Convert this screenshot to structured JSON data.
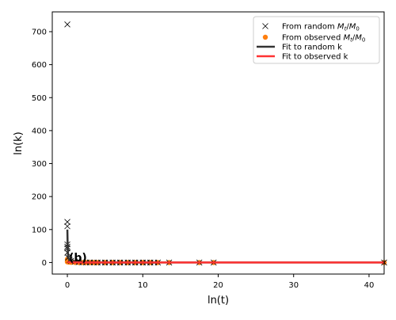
{
  "chart_data": {
    "type": "scatter",
    "panel_label": "(b)",
    "xlabel": "ln(t)",
    "ylabel": "ln(k)",
    "xlim": [
      -2.0,
      42.0
    ],
    "ylim": [
      -35,
      760
    ],
    "xticks": [
      0,
      10,
      20,
      30,
      40
    ],
    "yticks": [
      0,
      100,
      200,
      300,
      400,
      500,
      600,
      700
    ],
    "legend_position": "top-right",
    "grid": false,
    "series": [
      {
        "name": "From random M_t/M_0",
        "label_parts": {
          "prefix": "From random ",
          "m": "M",
          "msub": "t",
          "slash": "/",
          "m0": "M",
          "m0sub": "0"
        },
        "marker": "x",
        "color": "#000000",
        "x": [
          0,
          0,
          0,
          0,
          0,
          0,
          0,
          0.1,
          0.3,
          0.5,
          1.0,
          1.5,
          2.0,
          2.5,
          3.0,
          3.5,
          4.0,
          4.5,
          5.0,
          5.5,
          6.0,
          6.5,
          7.0,
          7.5,
          8.0,
          8.5,
          9.0,
          9.5,
          10.0,
          10.5,
          11.0,
          11.5,
          12.0,
          13.5,
          17.5,
          19.4,
          42.0
        ],
        "y": [
          722,
          123,
          110,
          55,
          48,
          43,
          30,
          15,
          8,
          5,
          3,
          1,
          0.5,
          0.3,
          0.2,
          0.1,
          0,
          0,
          0,
          0,
          0,
          0,
          0,
          0,
          0,
          0,
          0,
          0,
          0,
          0,
          0,
          0,
          0,
          0,
          0,
          0,
          0
        ]
      },
      {
        "name": "From observed M_t/M_0",
        "label_parts": {
          "prefix": "From observed ",
          "m": "M",
          "msub": "t",
          "slash": "/",
          "m0": "M",
          "m0sub": "0"
        },
        "marker": "o",
        "color": "#ff7f0e",
        "x": [
          0,
          0,
          0,
          0.2,
          0.5,
          1.0,
          1.5,
          2.0,
          2.5,
          3.0,
          3.5,
          4.0,
          5.0,
          6.0,
          7.0,
          8.0,
          9.0,
          10.0,
          11.0,
          12.0,
          13.5,
          17.5,
          19.4,
          42.0
        ],
        "y": [
          10,
          5,
          2,
          1,
          0.5,
          0.2,
          0,
          0,
          0,
          0,
          0,
          0,
          0,
          0,
          0,
          0,
          0,
          0,
          0,
          0,
          0,
          0,
          0,
          0
        ]
      },
      {
        "name": "Fit to random k",
        "marker": "line",
        "color": "#333333",
        "x": [
          0,
          0.05,
          0.1,
          0.2,
          0.4,
          0.8,
          1.5,
          3,
          6,
          12,
          24,
          42
        ],
        "y": [
          100,
          40,
          20,
          10,
          5,
          2.5,
          1.3,
          0.6,
          0.3,
          0.15,
          0.08,
          0.05
        ]
      },
      {
        "name": "Fit to observed k",
        "marker": "line",
        "color": "#ff3333",
        "x": [
          0,
          0.1,
          0.5,
          1,
          2,
          5,
          10,
          20,
          42
        ],
        "y": [
          1.5,
          1.0,
          0.6,
          0.4,
          0.2,
          0.1,
          0.05,
          0.02,
          0.01
        ]
      }
    ]
  }
}
